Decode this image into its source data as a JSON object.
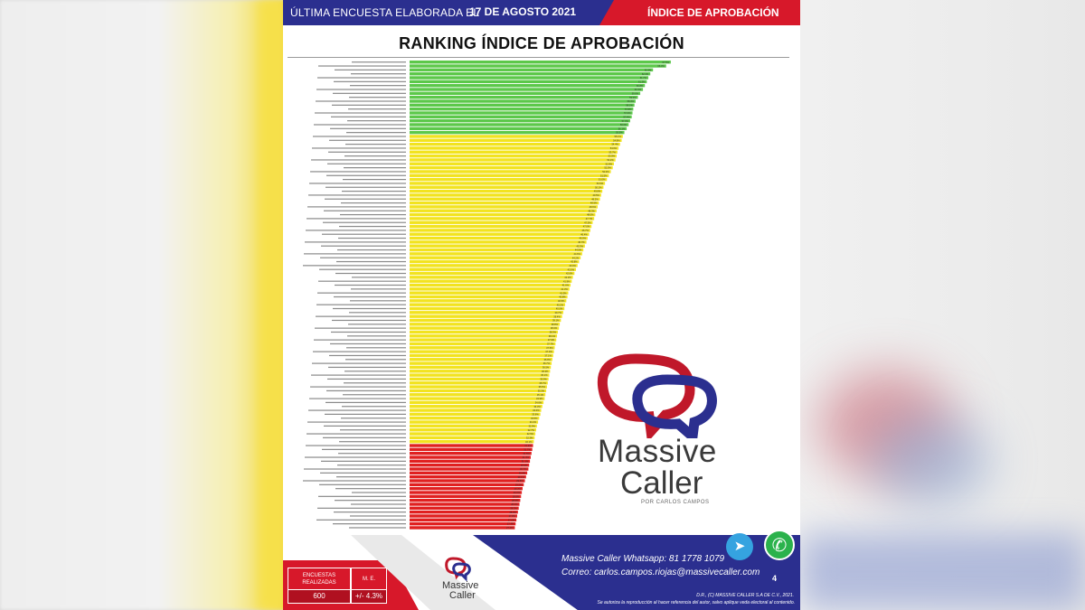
{
  "header": {
    "left_text": "ÚLTIMA ENCUESTA ELABORADA EL",
    "date": "17  DE AGOSTO 2021",
    "right_text": "ÍNDICE DE APROBACIÓN"
  },
  "colors": {
    "navy": "#2b2f8f",
    "red": "#d7182a",
    "green": "#5cc84a",
    "yellow": "#f2e31f",
    "bar_red": "#e02020"
  },
  "chart_data": {
    "type": "bar",
    "orientation": "horizontal",
    "title": "RANKING ÍNDICE DE APROBACIÓN",
    "values": [
      67.5,
      66.3,
      62.9,
      62.2,
      61.7,
      61.3,
      60.8,
      60.3,
      59.6,
      59.0,
      58.4,
      58.1,
      57.8,
      57.6,
      57.4,
      57.0,
      56.6,
      56.1,
      55.5,
      55.1,
      54.8,
      54.4,
      54.0,
      53.7,
      53.5,
      53.2,
      52.8,
      52.5,
      52.0,
      51.5,
      51.0,
      50.5,
      50.1,
      49.8,
      49.5,
      49.2,
      48.9,
      48.6,
      48.3,
      48.0,
      47.7,
      47.3,
      47.0,
      46.7,
      46.4,
      46.0,
      45.7,
      45.3,
      44.9,
      44.6,
      44.2,
      43.8,
      43.4,
      43.0,
      42.6,
      42.2,
      41.9,
      41.6,
      41.3,
      41.0,
      40.8,
      40.5,
      40.2,
      40.0,
      39.7,
      39.4,
      39.1,
      38.8,
      38.6,
      38.3,
      38.1,
      37.9,
      37.7,
      37.5,
      37.3,
      37.1,
      36.9,
      36.7,
      36.5,
      36.3,
      36.1,
      35.9,
      35.7,
      35.5,
      35.3,
      35.1,
      34.9,
      34.6,
      34.3,
      34.0,
      33.8,
      33.5,
      33.2,
      32.9,
      32.7,
      32.5,
      32.3,
      32.1,
      31.9,
      31.7,
      31.5,
      31.3,
      31.1,
      30.9,
      30.7,
      30.4,
      30.1,
      29.8,
      29.5,
      29.2,
      29.0,
      28.8,
      28.6,
      28.4,
      28.2,
      28.0,
      27.8,
      27.6,
      27.4,
      27.2
    ],
    "groups": [
      {
        "color": "green",
        "from": 0,
        "to": 18
      },
      {
        "color": "yellow",
        "from": 19,
        "to": 97
      },
      {
        "color": "red",
        "from": 98,
        "to": 119
      }
    ],
    "xlim": [
      0,
      70
    ],
    "grid": false,
    "legend": "none"
  },
  "logo": {
    "brand_line1": "Massive",
    "brand_line2": "Caller",
    "tagline": "POR CARLOS CAMPOS"
  },
  "footer": {
    "stats": [
      {
        "label": "ENCUESTAS REALIZADAS",
        "value": "600"
      },
      {
        "label": "M. E.",
        "value": "+/- 4.3%"
      }
    ],
    "small_logo_line1": "Massive",
    "small_logo_line2": "Caller",
    "whatsapp_text": "Massive Caller Whatsapp:  81 1778 1079",
    "email_text": "Correo: carlos.campos.riojas@massivecaller.com",
    "page_number": "4",
    "legal_line1": "D.R., (C) MASSIVE CALLER S.A DE C.V., 2021.",
    "legal_line2": "Se autoriza la reproducción al hacer referencia del autor, salvo aplique veda electoral al contenido."
  }
}
